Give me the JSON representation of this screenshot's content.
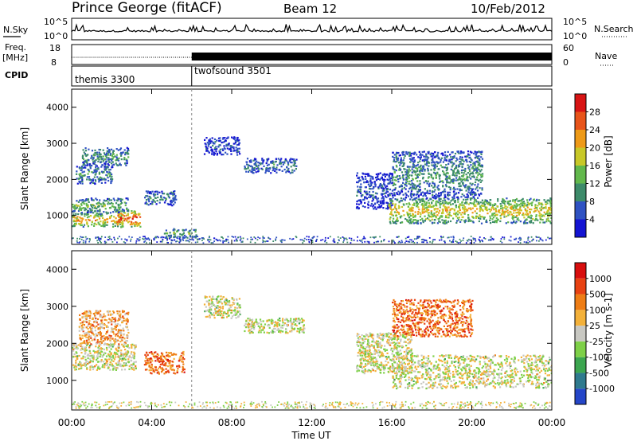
{
  "header": {
    "station": "Prince George (fitACF)",
    "beam": "Beam 12",
    "date": "10/Feb/2012"
  },
  "noise_panel": {
    "left_label": "N.Sky",
    "right_label": "N.Search",
    "left_ticks": [
      "10^5",
      "10^0"
    ],
    "right_ticks": [
      "10^5",
      "10^0"
    ]
  },
  "freq_panel": {
    "left_label_1": "Freq.",
    "left_label_2": "[MHz]",
    "left_ticks": [
      "18",
      "8"
    ],
    "right_label": "Nave",
    "right_ticks": [
      "60",
      "0"
    ]
  },
  "cpid_panel": {
    "label": "CPID",
    "modes": [
      {
        "name": "themis 3300",
        "start_hour": 0.0
      },
      {
        "name": "twofsound 3501",
        "start_hour": 6.0
      }
    ]
  },
  "chart_data": [
    {
      "type": "heatmap",
      "name": "power",
      "ylabel": "Slant Range [km]",
      "yticks": [
        "1000",
        "2000",
        "3000",
        "4000"
      ],
      "ylim": [
        200,
        4500
      ],
      "xlim": [
        0,
        24
      ],
      "colorbar_label": "Power [dB]",
      "colorbar_ticks": [
        "4",
        "8",
        "12",
        "16",
        "20",
        "24",
        "28"
      ],
      "colors": [
        "#1414d2",
        "#2f52c2",
        "#3d8b6a",
        "#62b84c",
        "#c8c828",
        "#ee9a18",
        "#e8541a",
        "#d81414"
      ],
      "regions": [
        {
          "t": [
            0.0,
            2.6
          ],
          "r": [
            700,
            1100
          ],
          "level": 0.7
        },
        {
          "t": [
            2.2,
            3.4
          ],
          "r": [
            700,
            1150
          ],
          "level": 0.95
        },
        {
          "t": [
            0.0,
            2.8
          ],
          "r": [
            1100,
            1500
          ],
          "level": 0.45
        },
        {
          "t": [
            0.2,
            2.0
          ],
          "r": [
            1900,
            2400
          ],
          "level": 0.35
        },
        {
          "t": [
            0.5,
            2.8
          ],
          "r": [
            2400,
            2900
          ],
          "level": 0.35
        },
        {
          "t": [
            3.6,
            5.2
          ],
          "r": [
            1300,
            1700
          ],
          "level": 0.3
        },
        {
          "t": [
            4.6,
            6.2
          ],
          "r": [
            400,
            650
          ],
          "level": 0.45
        },
        {
          "t": [
            6.6,
            8.4
          ],
          "r": [
            2700,
            3200
          ],
          "level": 0.2
        },
        {
          "t": [
            8.6,
            11.2
          ],
          "r": [
            2200,
            2600
          ],
          "level": 0.3
        },
        {
          "t": [
            14.2,
            16.0
          ],
          "r": [
            1200,
            2200
          ],
          "level": 0.2
        },
        {
          "t": [
            15.8,
            24.0
          ],
          "r": [
            800,
            1500
          ],
          "level": 0.65
        },
        {
          "t": [
            16.0,
            20.5
          ],
          "r": [
            1500,
            2800
          ],
          "level": 0.35
        }
      ]
    },
    {
      "type": "heatmap",
      "name": "velocity",
      "ylabel": "Slant Range [km]",
      "yticks": [
        "1000",
        "2000",
        "3000",
        "4000"
      ],
      "ylim": [
        200,
        4500
      ],
      "xlim": [
        0,
        24
      ],
      "xlabel": "Time UT",
      "xticks": [
        "00:00",
        "04:00",
        "08:00",
        "12:00",
        "16:00",
        "20:00",
        "00:00"
      ],
      "colorbar_label": "Velocity [m s-1]",
      "colorbar_ticks": [
        "1000",
        "500",
        "100",
        "25",
        "-25",
        "-100",
        "-500",
        "-1000"
      ],
      "colors": [
        "#2546c8",
        "#2f7a8e",
        "#3ca650",
        "#7ed048",
        "#c8c8c2",
        "#f3b13a",
        "#ee7d15",
        "#e84212",
        "#d80e0e"
      ],
      "regions": [
        {
          "t": [
            0.0,
            3.2
          ],
          "r": [
            1300,
            2000
          ],
          "level": 0.5
        },
        {
          "t": [
            0.3,
            2.8
          ],
          "r": [
            2000,
            2900
          ],
          "level": 0.65
        },
        {
          "t": [
            3.6,
            5.6
          ],
          "r": [
            1200,
            1800
          ],
          "level": 0.75
        },
        {
          "t": [
            6.6,
            8.4
          ],
          "r": [
            2700,
            3300
          ],
          "level": 0.5
        },
        {
          "t": [
            8.6,
            11.6
          ],
          "r": [
            2300,
            2700
          ],
          "level": 0.5
        },
        {
          "t": [
            14.2,
            17.0
          ],
          "r": [
            1200,
            2300
          ],
          "level": 0.5
        },
        {
          "t": [
            16.0,
            20.0
          ],
          "r": [
            2200,
            3200
          ],
          "level": 0.75
        },
        {
          "t": [
            16.0,
            24.0
          ],
          "r": [
            800,
            1700
          ],
          "level": 0.5
        }
      ]
    }
  ]
}
